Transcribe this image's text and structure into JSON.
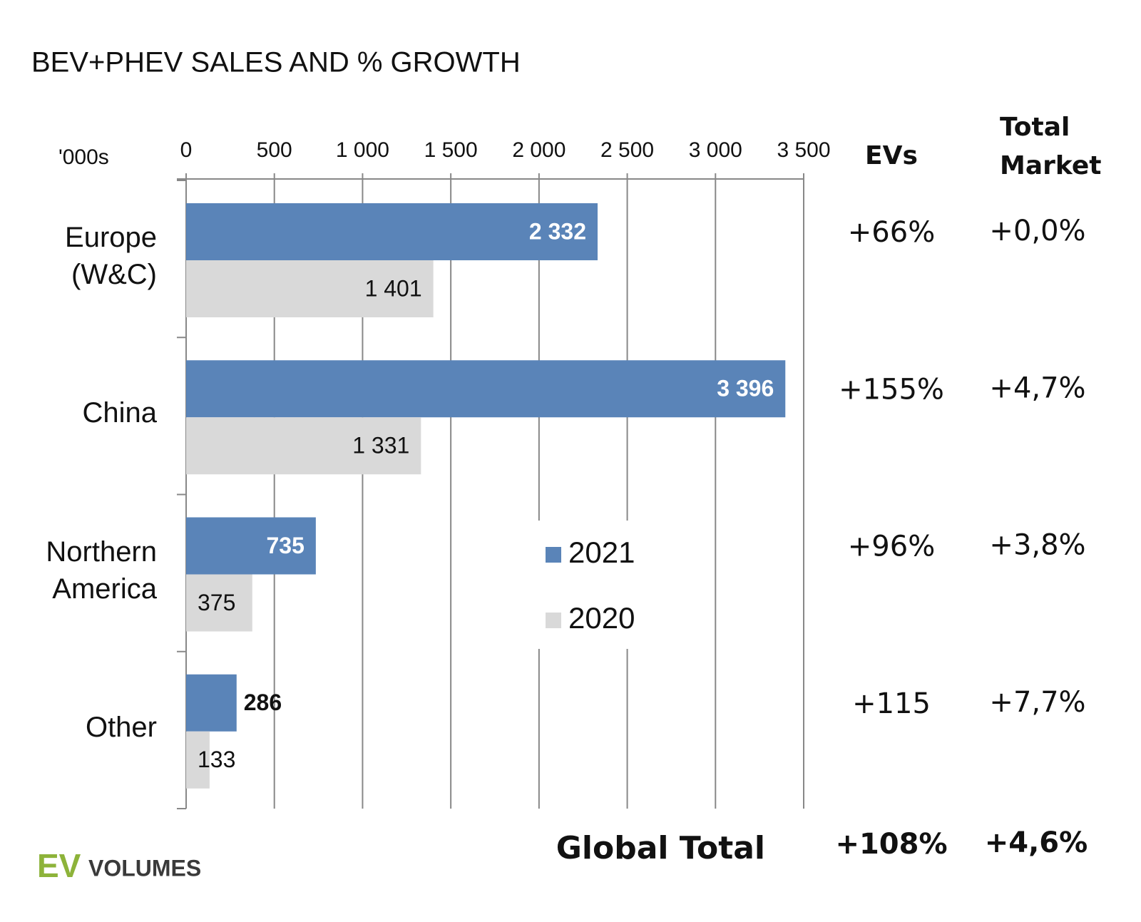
{
  "chart_data": {
    "type": "bar",
    "orientation": "horizontal",
    "title": "BEV+PHEV SALES AND % GROWTH",
    "unit_label": "'000s",
    "categories": [
      "Europe (W&C)",
      "China",
      "Northern America",
      "Other"
    ],
    "series": [
      {
        "name": "2021",
        "color": "#5a84b8",
        "values": [
          2332,
          3396,
          735,
          286
        ],
        "value_labels": [
          "2 332",
          "3 396",
          "735",
          "286"
        ]
      },
      {
        "name": "2020",
        "color": "#d9d9d9",
        "values": [
          1401,
          1331,
          375,
          133
        ],
        "value_labels": [
          "1 401",
          "1 331",
          "375",
          "133"
        ]
      }
    ],
    "xlim": [
      0,
      3500
    ],
    "xticks": [
      0,
      500,
      {
        "value": 1000,
        "label": "1 000"
      },
      {
        "value": 1500,
        "label": "1 500"
      },
      {
        "value": 2000,
        "label": "2 000"
      },
      {
        "value": 2500,
        "label": "2 500"
      },
      {
        "value": 3000,
        "label": "3 000"
      },
      {
        "value": 3500,
        "label": "3 500"
      }
    ],
    "grid": true,
    "legend": "center",
    "growth_table": {
      "columns": [
        "EVs",
        "Total Market"
      ],
      "rows": [
        [
          "+66%",
          "+0,0%"
        ],
        [
          "+155%",
          "+4,7%"
        ],
        [
          "+96%",
          "+3,8%"
        ],
        [
          "+115",
          "+7,7%"
        ]
      ],
      "total": [
        "Global Total",
        "+108%",
        "+4,6%"
      ]
    },
    "logo": [
      "EV",
      "VOLUMES"
    ]
  }
}
